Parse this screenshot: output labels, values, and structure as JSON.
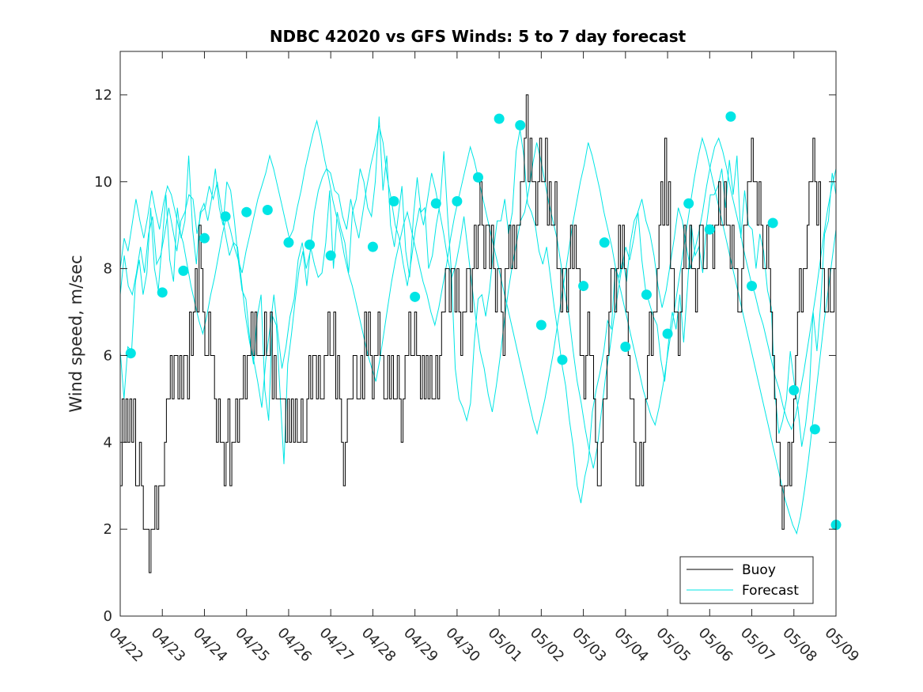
{
  "chart_data": {
    "type": "line",
    "title": "NDBC 42020 vs GFS Winds: 5 to 7 day forecast",
    "xlabel": "",
    "ylabel": "Wind speed, m/sec",
    "xlim": [
      0,
      17
    ],
    "ylim": [
      0,
      13
    ],
    "yticks": [
      0,
      2,
      4,
      6,
      8,
      10,
      12
    ],
    "xtick_labels": [
      "04/22",
      "04/23",
      "04/24",
      "04/25",
      "04/26",
      "04/27",
      "04/28",
      "04/29",
      "04/30",
      "05/01",
      "05/02",
      "05/03",
      "05/04",
      "05/05",
      "05/06",
      "05/07",
      "05/08",
      "05/09"
    ],
    "legend": {
      "position": "bottom-right",
      "entries": [
        "Buoy",
        "Forecast"
      ]
    },
    "colors": {
      "buoy": "#000000",
      "forecast": "#00e5e5",
      "axis": "#262626"
    },
    "buoy_hourly": [
      3,
      5,
      4,
      5,
      4,
      5,
      4,
      5,
      3,
      3,
      4,
      3,
      2,
      2,
      2,
      1,
      2,
      2,
      3,
      2,
      3,
      3,
      3,
      4,
      5,
      5,
      6,
      5,
      6,
      6,
      5,
      6,
      5,
      6,
      6,
      5,
      7,
      6,
      7,
      8,
      7,
      9,
      8,
      7,
      6,
      6,
      7,
      6,
      6,
      5,
      4,
      5,
      4,
      4,
      3,
      4,
      5,
      3,
      4,
      4,
      5,
      4,
      5,
      5,
      6,
      5,
      6,
      6,
      7,
      6,
      7,
      6,
      6,
      6,
      6,
      7,
      6,
      6,
      7,
      5,
      6,
      5,
      5,
      5,
      5,
      5,
      4,
      5,
      4,
      5,
      4,
      5,
      4,
      4,
      5,
      4,
      4,
      5,
      6,
      5,
      6,
      6,
      5,
      6,
      5,
      5,
      6,
      6,
      7,
      6,
      6,
      7,
      5,
      6,
      5,
      4,
      3,
      4,
      5,
      5,
      5,
      6,
      6,
      5,
      5,
      6,
      5,
      7,
      6,
      7,
      6,
      5,
      6,
      6,
      7,
      6,
      6,
      5,
      5,
      6,
      5,
      6,
      5,
      5,
      6,
      5,
      4,
      5,
      6,
      6,
      7,
      6,
      6,
      7,
      6,
      6,
      5,
      6,
      5,
      6,
      5,
      6,
      5,
      5,
      6,
      5,
      6,
      7,
      7,
      8,
      8,
      7,
      8,
      8,
      7,
      8,
      7,
      6,
      7,
      7,
      8,
      8,
      7,
      8,
      9,
      8,
      9,
      10,
      9,
      8,
      9,
      9,
      8,
      9,
      8,
      7,
      8,
      8,
      7,
      6,
      8,
      8,
      9,
      8,
      9,
      8,
      9,
      9,
      10,
      10,
      11,
      12,
      10,
      11,
      10,
      10,
      9,
      10,
      11,
      10,
      10,
      11,
      9,
      10,
      9,
      9,
      10,
      8,
      8,
      7,
      8,
      8,
      7,
      8,
      9,
      8,
      9,
      8,
      8,
      6,
      6,
      5,
      6,
      7,
      6,
      6,
      5,
      4,
      3,
      3,
      4,
      5,
      5,
      6,
      7,
      8,
      8,
      7,
      8,
      9,
      8,
      9,
      8,
      7,
      6,
      5,
      5,
      4,
      3,
      3,
      4,
      3,
      4,
      5,
      6,
      7,
      6,
      7,
      7,
      8,
      9,
      10,
      9,
      11,
      9,
      10,
      8,
      8,
      7,
      7,
      6,
      7,
      8,
      9,
      8,
      8,
      9,
      8,
      8,
      7,
      8,
      9,
      9,
      8,
      8,
      9,
      9,
      9,
      8,
      9,
      9,
      10,
      9,
      9,
      10,
      9,
      9,
      8,
      9,
      8,
      8,
      7,
      7,
      8,
      9,
      9,
      10,
      10,
      11,
      10,
      10,
      9,
      10,
      9,
      8,
      8,
      9,
      8,
      7,
      6,
      5,
      4,
      4,
      3,
      2,
      3,
      3,
      4,
      3,
      4,
      5,
      6,
      7,
      8,
      7,
      8,
      8,
      9,
      10,
      10,
      11,
      10,
      9,
      10,
      8,
      8,
      7,
      7,
      8,
      7,
      7,
      8
    ]
  },
  "forecast_runs": [
    [
      6.1,
      5.0,
      6.2,
      6.1,
      7.7,
      8.2,
      7.4,
      7.9,
      9.4,
      8.0,
      7.5,
      8.6,
      9.7,
      8.2,
      7.7,
      9.4,
      8.7,
      9.1,
      10.6,
      8.9,
      8.1,
      9.3,
      9.5,
      9.1,
      9.6,
      10.3,
      9.4,
      9.0,
      10.0,
      9.8,
      9.1,
      8.2,
      7.5,
      7.3,
      6.4,
      5.8,
      6.9,
      7.4,
      5.2,
      4.5,
      6.9,
      6.7,
      5.1,
      3.5,
      5.8,
      6.5,
      7.3,
      8.0,
      8.4,
      7.6,
      8.5,
      8.1,
      7.8,
      7.9,
      8.6,
      9.8,
      8.0,
      9.3,
      8.9,
      8.6,
      7.9,
      9.3,
      9.6,
      10.3,
      10.0,
      9.4,
      9.2,
      10.0,
      11.5,
      9.8,
      10.6,
      9.0,
      8.5,
      9.2,
      9.9,
      8.4,
      7.8,
      9.2,
      10.1,
      9.3,
      9.4,
      8.0,
      8.3,
      9.0,
      9.5,
      10.7,
      9.2,
      7.9,
      5.7,
      5.0,
      4.8,
      4.5,
      4.9,
      6.3,
      7.3,
      7.4,
      6.9,
      7.5,
      8.4,
      9.1,
      9.1,
      9.6,
      8.8,
      9.3,
      10.7,
      11.2,
      10.6,
      9.5,
      9.3,
      9.0,
      8.4,
      8.1,
      8.5,
      7.8,
      7.1,
      6.5,
      5.8,
      5.3,
      4.5,
      3.9,
      3.0,
      2.6,
      3.2,
      3.6,
      4.7,
      5.2,
      5.6,
      6.1,
      6.8,
      6.6,
      8.0,
      7.8,
      8.2,
      7.7,
      8.6,
      9.1,
      9.3,
      8.2,
      7.5,
      7.2,
      6.9,
      6.7,
      5.9,
      5.4,
      6.3,
      7.0,
      6.6,
      7.4,
      6.3,
      7.6,
      9.0,
      8.3,
      8.5,
      7.9,
      9.0,
      9.7,
      9.7,
      9.9,
      10.3,
      9.4,
      10.5,
      9.7,
      10.6,
      8.7,
      9.8,
      9.0,
      8.9,
      8.0,
      8.8,
      8.4,
      7.5,
      7.1,
      5.1,
      4.2,
      4.5,
      5.0,
      6.1,
      5.4,
      4.8,
      3.9,
      4.4,
      5.2,
      7.0,
      6.1,
      7.2,
      8.8,
      9.1,
      10.2,
      9.7
    ],
    [
      7.4,
      8.3,
      7.6,
      7.4,
      7.9,
      8.5,
      7.9,
      8.8,
      9.2,
      8.1,
      8.3,
      8.8,
      9.4,
      8.9,
      8.4,
      9.1,
      9.3,
      9.7,
      9.6,
      8.8,
      9.3,
      9.4,
      9.9,
      9.6,
      10.0,
      9.4,
      8.8,
      8.3,
      8.6,
      8.5,
      7.7,
      6.9,
      6.3,
      5.9,
      5.4,
      4.8,
      5.9,
      6.6,
      7.4,
      6.5,
      5.7,
      6.2,
      6.9,
      7.3,
      8.2,
      8.6,
      8.0,
      8.4,
      9.3,
      9.8,
      10.1,
      10.3,
      10.2,
      9.8,
      9.7,
      9.2,
      8.9,
      9.6,
      9.1,
      8.7,
      9.3,
      9.9,
      10.4,
      10.8,
      11.3,
      10.9,
      10.1,
      9.6,
      9.0,
      8.7,
      8.1,
      7.6,
      8.2,
      8.9,
      9.4,
      9.0,
      9.6,
      10.2,
      9.8,
      9.3,
      8.8,
      8.2,
      7.8,
      8.1,
      8.6,
      9.2,
      8.4,
      7.6,
      6.8,
      6.1,
      5.7,
      5.1,
      4.7,
      5.3,
      6.0,
      6.8,
      7.5,
      8.1,
      8.6,
      9.1,
      9.3,
      9.8,
      10.4,
      10.9,
      10.5,
      10.0,
      9.5,
      9.1,
      8.7,
      8.1,
      7.4,
      6.9,
      6.1,
      5.4,
      4.9,
      4.3,
      3.8,
      3.4,
      3.9,
      4.7,
      5.5,
      6.1,
      6.8,
      7.4,
      8.0,
      8.5,
      8.2,
      8.7,
      9.3,
      9.6,
      9.1,
      8.8,
      8.3,
      7.6,
      7.1,
      7.5,
      8.1,
      8.7,
      9.4,
      9.1,
      8.5,
      8.0,
      8.4,
      8.8,
      9.3,
      9.9,
      10.4,
      10.8,
      11.0,
      10.7,
      10.3,
      9.8,
      9.4,
      9.0,
      8.5,
      8.1,
      7.7,
      7.4,
      7.0,
      6.7,
      6.3,
      5.9,
      5.5,
      5.2,
      4.8,
      4.5,
      4.3,
      4.6,
      5.1,
      5.6,
      6.2,
      6.8,
      7.4,
      8.1,
      8.8,
      9.4,
      9.9,
      10.3
    ],
    [
      8.0,
      8.7,
      8.4,
      9.0,
      9.6,
      9.1,
      8.7,
      9.2,
      9.8,
      9.3,
      8.9,
      9.5,
      9.9,
      9.7,
      9.3,
      8.9,
      8.6,
      8.1,
      7.6,
      7.2,
      6.8,
      6.5,
      6.9,
      7.4,
      7.8,
      8.3,
      8.8,
      9.2,
      8.9,
      8.5,
      8.2,
      7.9,
      8.4,
      8.8,
      9.2,
      9.6,
      9.9,
      10.2,
      10.6,
      10.3,
      9.9,
      9.5,
      9.1,
      8.7,
      8.9,
      9.4,
      9.8,
      10.3,
      10.7,
      11.1,
      11.4,
      11.0,
      10.5,
      10.1,
      9.6,
      9.2,
      8.8,
      8.3,
      7.9,
      7.6,
      7.2,
      6.8,
      6.4,
      6.0,
      5.7,
      5.4,
      5.9,
      6.5,
      7.1,
      7.7,
      8.2,
      8.6,
      9.0,
      9.3,
      8.9,
      8.5,
      8.1,
      7.7,
      7.4,
      7.0,
      6.7,
      7.1,
      7.6,
      8.1,
      8.7,
      9.2,
      9.6,
      10.0,
      10.4,
      10.8,
      10.5,
      10.1,
      9.7,
      9.3,
      8.9,
      8.5,
      8.1,
      7.7,
      7.3,
      6.9,
      6.5,
      6.1,
      5.7,
      5.3,
      4.9,
      4.5,
      4.2,
      4.6,
      5.0,
      5.5,
      6.0,
      6.6,
      7.2,
      7.8,
      8.4,
      9.0,
      9.5,
      10.0,
      10.4,
      10.9,
      10.6,
      10.2,
      9.8,
      9.3,
      8.9,
      8.5,
      8.0,
      7.6,
      7.2,
      6.8,
      6.4,
      6.0,
      5.6,
      5.2,
      4.9,
      4.6,
      4.4,
      4.8,
      5.3,
      5.9,
      6.5,
      7.1,
      7.7,
      8.3,
      8.9,
      9.5,
      10.1,
      10.6,
      11.0,
      10.7,
      10.3,
      9.9,
      9.5,
      9.1,
      8.7,
      8.3,
      7.9,
      7.5,
      7.1,
      6.7,
      6.3,
      5.9,
      5.5,
      5.1,
      4.7,
      4.3,
      3.9,
      3.5,
      3.1,
      2.7,
      2.4,
      2.1,
      1.9,
      2.3,
      2.9,
      3.6,
      4.4,
      5.2,
      6.0,
      6.8,
      7.5,
      8.2,
      8.9
    ]
  ],
  "forecast_markers": [
    {
      "x": 0.25,
      "y": 6.05
    },
    {
      "x": 1.0,
      "y": 7.45
    },
    {
      "x": 1.5,
      "y": 7.95
    },
    {
      "x": 2.0,
      "y": 8.7
    },
    {
      "x": 2.5,
      "y": 9.2
    },
    {
      "x": 3.0,
      "y": 9.3
    },
    {
      "x": 3.5,
      "y": 9.35
    },
    {
      "x": 4.0,
      "y": 8.6
    },
    {
      "x": 4.5,
      "y": 8.55
    },
    {
      "x": 5.0,
      "y": 8.3
    },
    {
      "x": 6.0,
      "y": 8.5
    },
    {
      "x": 6.5,
      "y": 9.55
    },
    {
      "x": 7.0,
      "y": 7.35
    },
    {
      "x": 7.5,
      "y": 9.5
    },
    {
      "x": 8.0,
      "y": 9.55
    },
    {
      "x": 8.5,
      "y": 10.1
    },
    {
      "x": 9.0,
      "y": 11.45
    },
    {
      "x": 9.5,
      "y": 11.3
    },
    {
      "x": 10.0,
      "y": 6.7
    },
    {
      "x": 10.5,
      "y": 5.9
    },
    {
      "x": 11.0,
      "y": 7.6
    },
    {
      "x": 11.5,
      "y": 8.6
    },
    {
      "x": 12.0,
      "y": 6.2
    },
    {
      "x": 12.5,
      "y": 7.4
    },
    {
      "x": 13.0,
      "y": 6.5
    },
    {
      "x": 13.5,
      "y": 9.5
    },
    {
      "x": 14.0,
      "y": 8.9
    },
    {
      "x": 14.5,
      "y": 11.5
    },
    {
      "x": 15.0,
      "y": 7.6
    },
    {
      "x": 15.5,
      "y": 9.05
    },
    {
      "x": 16.0,
      "y": 5.2
    },
    {
      "x": 16.5,
      "y": 4.3
    },
    {
      "x": 17.0,
      "y": 2.1
    }
  ]
}
